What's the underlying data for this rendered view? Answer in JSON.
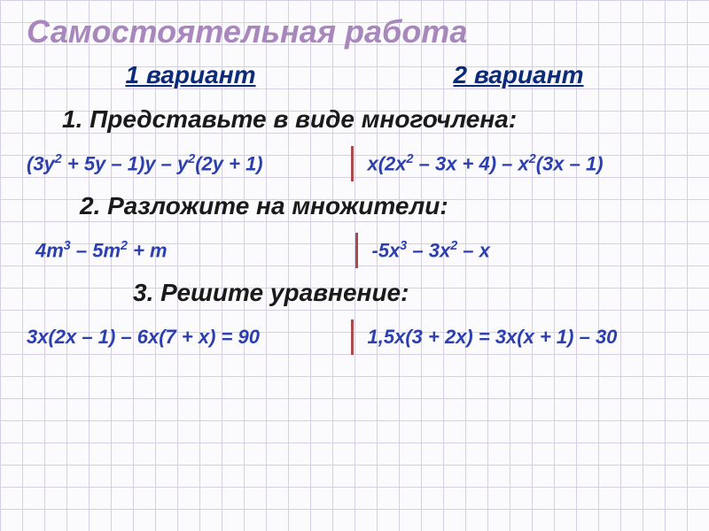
{
  "colors": {
    "title": "#a887bd",
    "variant": "#0a2a7a",
    "heading": "#1a1a1a",
    "expr": "#2b3fb0",
    "divider": "#a84b4b",
    "grid_line": "#d6cfe4",
    "bg": "#fbfbfd"
  },
  "fonts": {
    "title_size": 36,
    "variant_size": 28,
    "heading_size": 28,
    "expr_size": 22
  },
  "title": "Самостоятельная работа",
  "variants": {
    "left": "1 вариант",
    "right": "2 вариант"
  },
  "tasks": [
    {
      "heading": "1. Представьте в виде многочлена:",
      "left_html": "(3y<sup>2</sup> + 5y – 1)y – y<sup>2</sup>(2y + 1)",
      "right_html": "x(2x<sup>2</sup> – 3x + 4) – x<sup>2</sup>(3x – 1)"
    },
    {
      "heading": "2. Разложите на множители:",
      "left_html": "4m<sup>3</sup> – 5m<sup>2</sup> + m",
      "right_html": "-5x<sup>3</sup> – 3x<sup>2</sup> – x"
    },
    {
      "heading": "3. Решите уравнение:",
      "left_html": "3x(2x – 1) – 6x(7 + x) = 90",
      "right_html": "1,5x(3 + 2x) = 3x(x + 1) – 30"
    }
  ]
}
